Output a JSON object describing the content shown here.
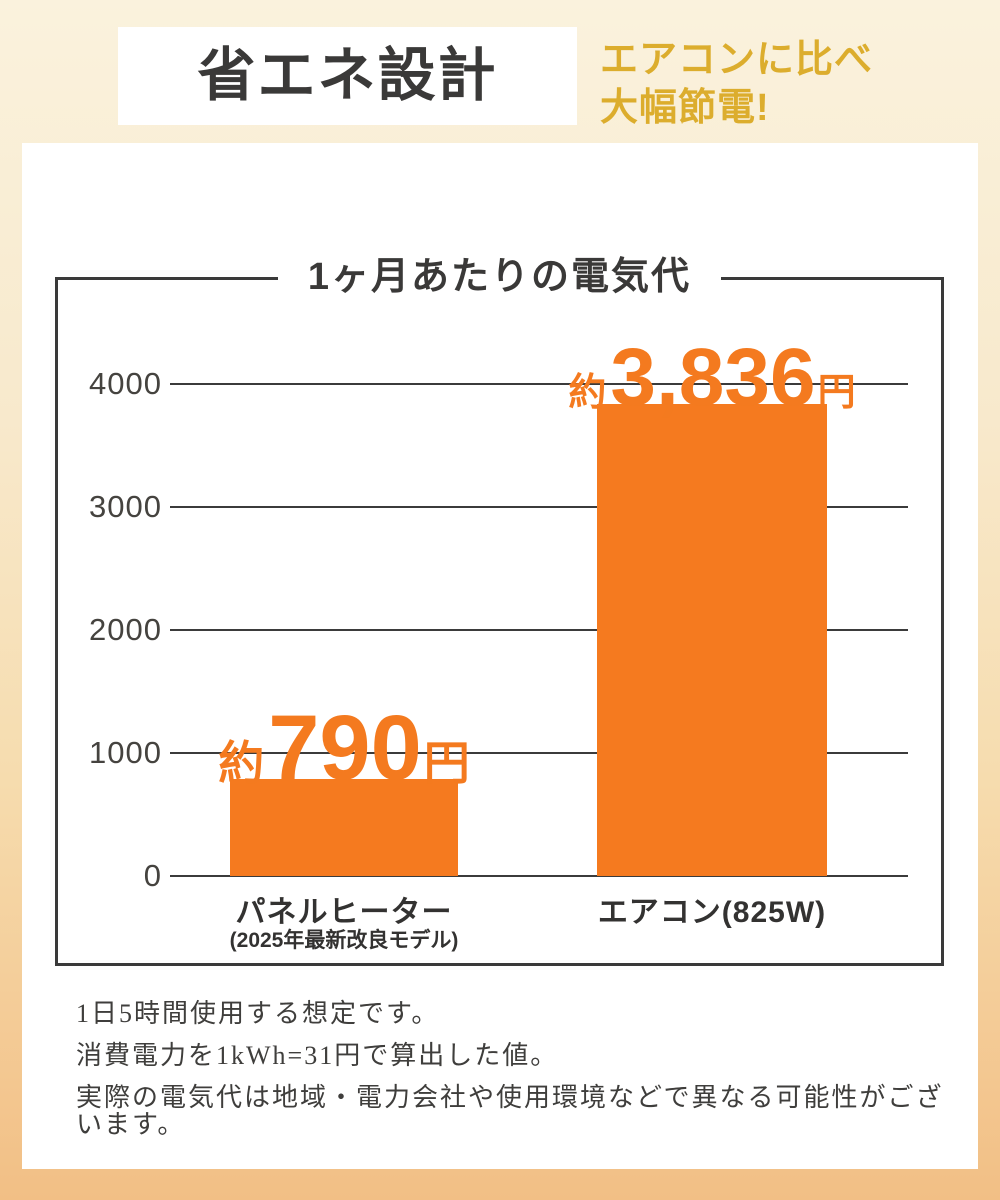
{
  "header": {
    "title": "省エネ設計",
    "subtitle_lines": [
      "エアコンに比べ",
      "大幅節電!"
    ]
  },
  "chart_data": {
    "type": "bar",
    "title": "1ヶ月あたりの電気代",
    "categories": [
      {
        "label": "パネルヒーター",
        "subnote": "(2025年最新改良モデル)"
      },
      {
        "label": "エアコン(825W)",
        "subnote": ""
      }
    ],
    "values": [
      790,
      3836
    ],
    "value_labels": [
      {
        "prefix": "約",
        "number": "790",
        "suffix": "円"
      },
      {
        "prefix": "約",
        "number": "3,836",
        "suffix": "円"
      }
    ],
    "xlabel": "",
    "ylabel": "",
    "ylim": [
      0,
      4000
    ],
    "yticks": [
      0,
      1000,
      2000,
      3000,
      4000
    ],
    "grid": true,
    "legend": false,
    "bar_color": "#F57A1F"
  },
  "footnotes": [
    "1日5時間使用する想定です。",
    "消費電力を1kWh=31円で算出した値。",
    "実際の電気代は地域・電力会社や使用環境などで異なる可能性がございます。"
  ],
  "colors": {
    "accent_orange": "#F57A1F",
    "accent_yellow": "#DCAD2D",
    "text_dark": "#3A3938",
    "grid": "#3B3B3B",
    "bg_top": "#FAF2DD",
    "bg_bottom": "#F2BF85",
    "card": "#FFFFFF"
  }
}
